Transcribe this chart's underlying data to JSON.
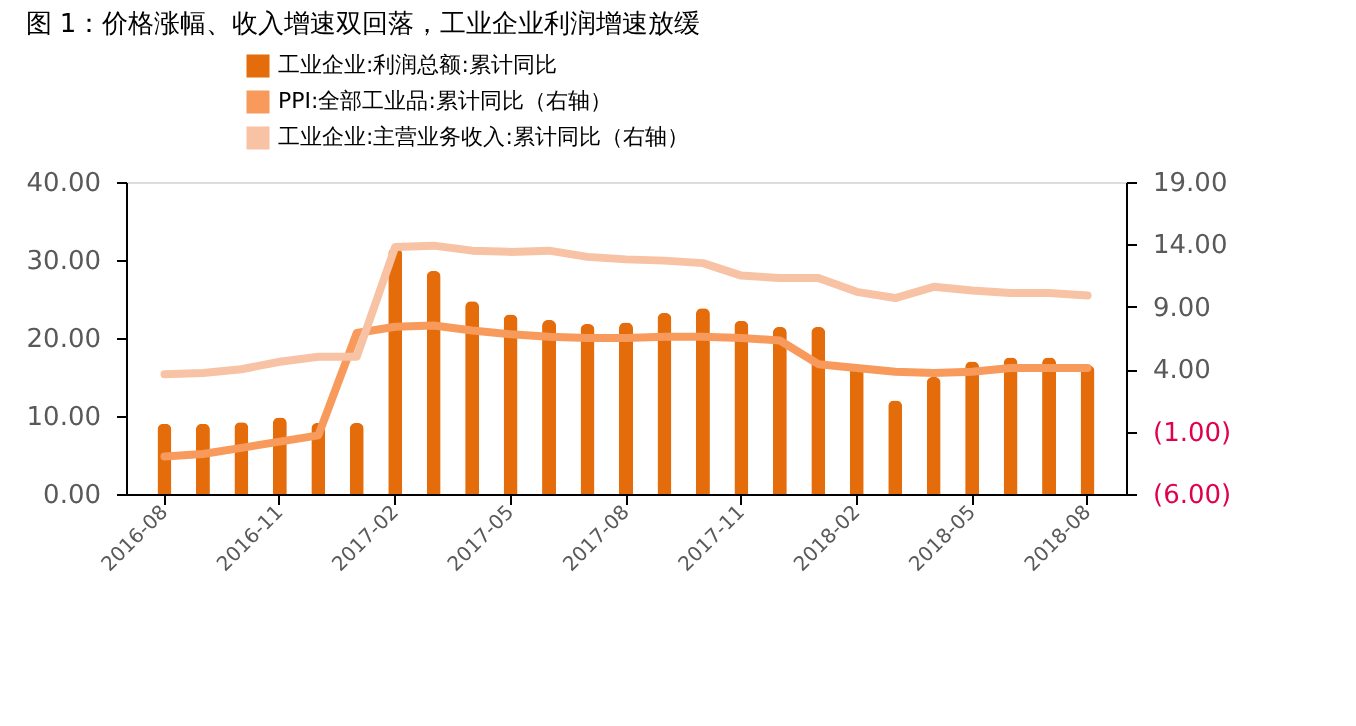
{
  "chart_data": {
    "type": "bar",
    "title": "图 1：价格涨幅、收入增速双回落，工业企业利润增速放缓",
    "categories": [
      "2016-08",
      null,
      null,
      "2016-11",
      null,
      null,
      "2017-02",
      null,
      null,
      "2017-05",
      null,
      null,
      "2017-08",
      null,
      null,
      "2017-11",
      null,
      null,
      "2018-02",
      null,
      null,
      "2018-05",
      null,
      null,
      "2018-08"
    ],
    "series": [
      {
        "name": "工业企业:利润总额:累计同比",
        "color": "#e46c0a",
        "values": [
          9.0,
          9.0,
          9.2,
          9.8,
          9.1,
          9.1,
          31.5,
          28.6,
          24.7,
          23.0,
          22.3,
          21.8,
          22.0,
          23.2,
          23.8,
          22.2,
          21.4,
          21.4,
          16.4,
          12.0,
          15.0,
          17.0,
          17.5,
          17.5,
          16.5
        ]
      },
      {
        "name": "PPI:全部工业品:累计同比（右轴）",
        "type": "line",
        "axis": "y2",
        "color": "#f79a5b",
        "values": [
          -3.0,
          -2.8,
          -2.3,
          -1.8,
          -1.3,
          6.9,
          7.4,
          7.5,
          7.1,
          6.8,
          6.6,
          6.5,
          6.5,
          6.6,
          6.6,
          6.5,
          6.3,
          4.4,
          4.1,
          3.8,
          3.7,
          3.8,
          4.1,
          4.1,
          4.1
        ]
      },
      {
        "name": "工业企业:主营业务收入:累计同比（右轴）",
        "type": "line",
        "axis": "y2",
        "color": "#f8c2a4",
        "values": [
          3.6,
          3.7,
          4.0,
          4.6,
          5.0,
          5.0,
          13.8,
          13.9,
          13.5,
          13.4,
          13.5,
          13.0,
          12.8,
          12.7,
          12.5,
          11.5,
          11.3,
          11.3,
          10.2,
          9.7,
          10.6,
          10.3,
          10.1,
          10.1,
          9.9
        ]
      }
    ],
    "ylim": [
      0,
      40
    ],
    "yticks": [
      {
        "value": 0,
        "label": "0.00"
      },
      {
        "value": 10,
        "label": "10.00"
      },
      {
        "value": 20,
        "label": "20.00"
      },
      {
        "value": 30,
        "label": "30.00"
      },
      {
        "value": 40,
        "label": "40.00"
      }
    ],
    "y2lim": [
      -6,
      19
    ],
    "y2ticks": [
      {
        "value": -6,
        "label": "(6.00)"
      },
      {
        "value": -1,
        "label": "(1.00)"
      },
      {
        "value": 4,
        "label": "4.00"
      },
      {
        "value": 9,
        "label": "9.00"
      },
      {
        "value": 14,
        "label": "14.00"
      },
      {
        "value": 19,
        "label": "19.00"
      }
    ],
    "legend": "top"
  }
}
